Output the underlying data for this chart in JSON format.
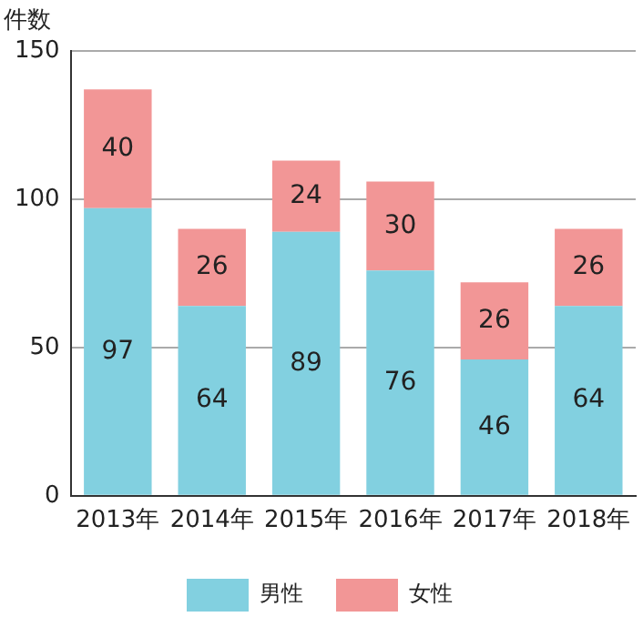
{
  "chart_data": {
    "type": "bar",
    "ylabel": "件数",
    "categories": [
      "2013年",
      "2014年",
      "2015年",
      "2016年",
      "2017年",
      "2018年"
    ],
    "series": [
      {
        "name": "男性",
        "color": "#82d0e0",
        "values": [
          97,
          64,
          89,
          76,
          46,
          64
        ]
      },
      {
        "name": "女性",
        "color": "#f29696",
        "values": [
          40,
          26,
          24,
          30,
          26,
          26
        ]
      }
    ],
    "stacked": true,
    "ylim": [
      0,
      150
    ],
    "yticks": [
      0,
      50,
      100,
      150
    ],
    "grid": "y",
    "legend": "bottom",
    "data_labels": true
  }
}
